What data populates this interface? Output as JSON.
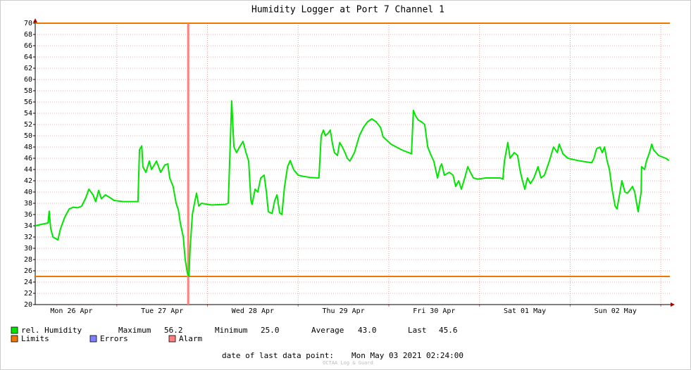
{
  "chart_data": {
    "type": "line",
    "title": "Humidity Logger at Port 7 Channel 1",
    "x": [
      2.4,
      4.3,
      5.8,
      6.1,
      6.5,
      7.1,
      8.4,
      9.1,
      10.2,
      11.4,
      12.5,
      13.6,
      14.7,
      15.8,
      16.6,
      17.7,
      18.4,
      19.2,
      19.9,
      21.0,
      22.2,
      23.3,
      25.7,
      29.6,
      30.0,
      30.6,
      30.9,
      31.7,
      32.6,
      33.2,
      34.5,
      35.6,
      36.7,
      37.5,
      38.0,
      38.9,
      39.7,
      40.3,
      40.8,
      41.6,
      42.1,
      42.7,
      43.1,
      43.4,
      44.0,
      44.7,
      45.1,
      45.7,
      46.4,
      49.0,
      52.7,
      53.5,
      54.0,
      54.4,
      55.0,
      55.7,
      56.5,
      57.4,
      58.2,
      58.9,
      59.5,
      59.8,
      60.6,
      61.3,
      62.1,
      63.0,
      63.6,
      64.1,
      65.1,
      65.8,
      66.4,
      67.1,
      67.7,
      68.4,
      69.2,
      69.9,
      70.8,
      72.0,
      73.3,
      75.1,
      77.5,
      78.1,
      78.7,
      79.2,
      80.0,
      80.5,
      81.1,
      81.6,
      82.4,
      83.0,
      83.7,
      84.4,
      85.0,
      85.7,
      86.9,
      88.2,
      89.3,
      90.4,
      91.5,
      92.6,
      93.8,
      94.5,
      96.6,
      99.4,
      102.0,
      102.5,
      103.1,
      103.8,
      104.6,
      105.5,
      106.3,
      107.2,
      107.9,
      108.9,
      109.6,
      110.0,
      110.7,
      112.0,
      113.0,
      113.7,
      114.5,
      115.2,
      116.1,
      116.9,
      117.6,
      118.4,
      119.5,
      121.7,
      125.5,
      126.2,
      126.6,
      127.5,
      128.1,
      129.2,
      130.1,
      130.7,
      131.2,
      132.0,
      132.7,
      133.5,
      134.4,
      135.5,
      136.3,
      137.2,
      138.5,
      139.6,
      140.6,
      141.1,
      142.1,
      143.4,
      146.0,
      149.7,
      150.3,
      151.0,
      151.9,
      152.5,
      153.1,
      153.8,
      154.4,
      155.1,
      155.9,
      156.4,
      157.2,
      157.7,
      158.5,
      159.2,
      160.0,
      160.5,
      161.1,
      161.6,
      162.0,
      162.8,
      162.9,
      163.7,
      164.2,
      165.0,
      165.6,
      166.1,
      167.4,
      169.3,
      170.2
    ],
    "series": [
      {
        "name": "rel. Humidity",
        "color": "#00e600",
        "values": [
          34.0,
          34.3,
          34.5,
          36.6,
          33.5,
          32.0,
          31.5,
          33.5,
          35.5,
          37.0,
          37.3,
          37.2,
          37.5,
          39.0,
          40.5,
          39.5,
          38.3,
          40.3,
          38.8,
          39.5,
          39.0,
          38.5,
          38.3,
          38.3,
          47.5,
          48.2,
          44.5,
          43.5,
          45.5,
          44.0,
          45.5,
          43.5,
          44.8,
          45.0,
          42.5,
          41.0,
          38.0,
          36.8,
          34.5,
          32.0,
          28.0,
          25.5,
          25.0,
          30.0,
          36.0,
          38.5,
          39.8,
          37.5,
          38.0,
          37.7,
          37.8,
          38.0,
          48.0,
          56.2,
          48.0,
          47.0,
          48.0,
          49.0,
          47.0,
          45.5,
          38.5,
          37.8,
          40.5,
          40.0,
          42.5,
          43.0,
          40.0,
          36.5,
          36.2,
          38.5,
          39.5,
          36.3,
          36.0,
          41.0,
          44.5,
          45.6,
          44.0,
          43.0,
          42.8,
          42.6,
          42.5,
          50.0,
          51.0,
          50.0,
          50.5,
          51.0,
          48.5,
          47.0,
          46.5,
          48.8,
          48.0,
          47.0,
          46.0,
          45.5,
          47.0,
          50.0,
          51.5,
          52.5,
          53.0,
          52.5,
          51.5,
          49.8,
          48.5,
          47.5,
          46.8,
          54.5,
          53.5,
          52.8,
          52.5,
          52.0,
          48.0,
          46.5,
          45.5,
          42.5,
          44.5,
          45.0,
          43.0,
          43.5,
          43.0,
          41.0,
          42.0,
          40.5,
          42.5,
          44.5,
          43.5,
          42.5,
          42.3,
          42.5,
          42.5,
          42.3,
          45.5,
          48.8,
          46.0,
          47.0,
          46.5,
          44.0,
          42.5,
          40.5,
          42.5,
          41.5,
          42.5,
          44.5,
          42.5,
          43.0,
          45.5,
          48.0,
          47.0,
          48.5,
          46.8,
          46.0,
          45.6,
          45.2,
          46.0,
          47.7,
          48.0,
          47.0,
          48.0,
          45.5,
          44.0,
          40.5,
          37.5,
          37.0,
          40.0,
          42.0,
          40.0,
          39.8,
          40.5,
          41.0,
          40.0,
          38.0,
          36.5,
          40.0,
          44.5,
          44.0,
          45.5,
          47.0,
          48.5,
          47.5,
          46.5,
          46.0,
          45.6
        ]
      }
    ],
    "xlim": [
      2.4,
      170.4
    ],
    "xticks": [
      {
        "value": 12,
        "label": "Mon 26 Apr"
      },
      {
        "value": 36,
        "label": "Tue 27 Apr"
      },
      {
        "value": 60,
        "label": "Wed 28 Apr"
      },
      {
        "value": 84,
        "label": "Thu 29 Apr"
      },
      {
        "value": 108,
        "label": "Fri 30 Apr"
      },
      {
        "value": 132,
        "label": "Sat 01 May"
      },
      {
        "value": 156,
        "label": "Sun 02 May"
      }
    ],
    "xgrid": [
      24,
      48,
      72,
      96,
      120,
      144,
      168
    ],
    "ylim": [
      20,
      70
    ],
    "yticks": [
      20,
      22,
      24,
      26,
      28,
      30,
      32,
      34,
      36,
      38,
      40,
      42,
      44,
      46,
      48,
      50,
      52,
      54,
      56,
      58,
      60,
      62,
      64,
      66,
      68,
      70
    ],
    "grid": true,
    "limits": {
      "name": "Limits",
      "color": "#f07800",
      "values": [
        70,
        25
      ]
    },
    "errors": {
      "name": "Errors",
      "color": "#7f7fff"
    },
    "alarm": {
      "name": "Alarm",
      "color": "#ff7f7f",
      "x": [
        42.9
      ]
    },
    "stats": [
      {
        "label": "Maximum",
        "value": "56.2"
      },
      {
        "label": "Minimum",
        "value": "25.0"
      },
      {
        "label": "Average",
        "value": "43.0"
      },
      {
        "label": "Last",
        "value": "45.6"
      }
    ],
    "footer_label": "date of last data point:",
    "footer_value": "Mon May 03 2021 02:24:00",
    "watermark": "OCTAA Log & Guard"
  }
}
